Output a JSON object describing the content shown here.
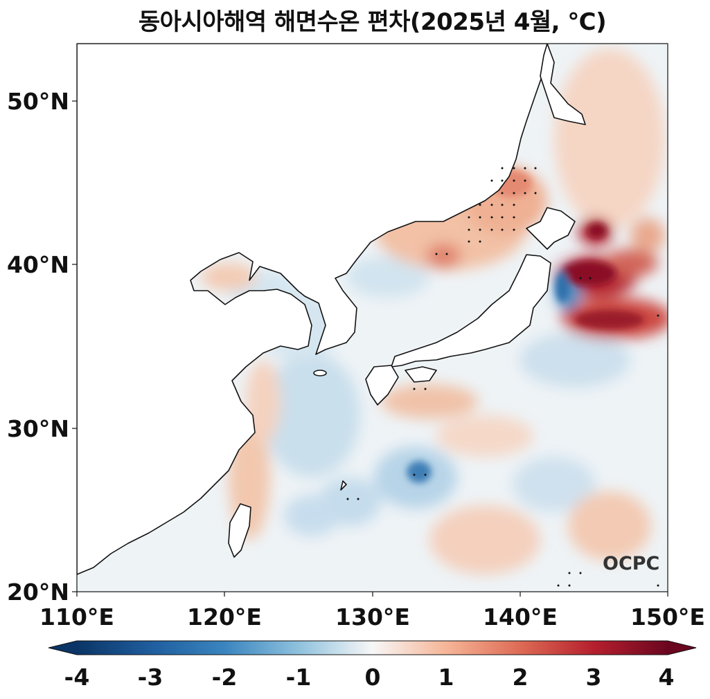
{
  "title": "동아시아해역 해면수온 편차(2025년 4월, ℃)",
  "logo": "OCPC",
  "map": {
    "lon_range": [
      110,
      150
    ],
    "lat_range": [
      20,
      53.5
    ],
    "lat_ticks": [
      {
        "value": 50,
        "label": "50°N"
      },
      {
        "value": 40,
        "label": "40°N"
      },
      {
        "value": 30,
        "label": "30°N"
      },
      {
        "value": 20,
        "label": "20°N"
      }
    ],
    "lon_ticks": [
      {
        "value": 110,
        "label": "110°E"
      },
      {
        "value": 120,
        "label": "120°E"
      },
      {
        "value": 130,
        "label": "130°E"
      },
      {
        "value": 140,
        "label": "140°E"
      },
      {
        "value": 150,
        "label": "150°E"
      }
    ]
  },
  "colorbar": {
    "min": -4,
    "max": 4,
    "ticks": [
      "-4",
      "-3",
      "-2",
      "-1",
      "0",
      "1",
      "2",
      "3",
      "4"
    ],
    "colors": {
      "deep_blue": "#0a3566",
      "blue": "#2f7ab8",
      "light_blue": "#a7cfe4",
      "white": "#f7f7f7",
      "light_red": "#f4b89b",
      "red": "#d6604d",
      "deep_red": "#7a0822"
    }
  }
}
